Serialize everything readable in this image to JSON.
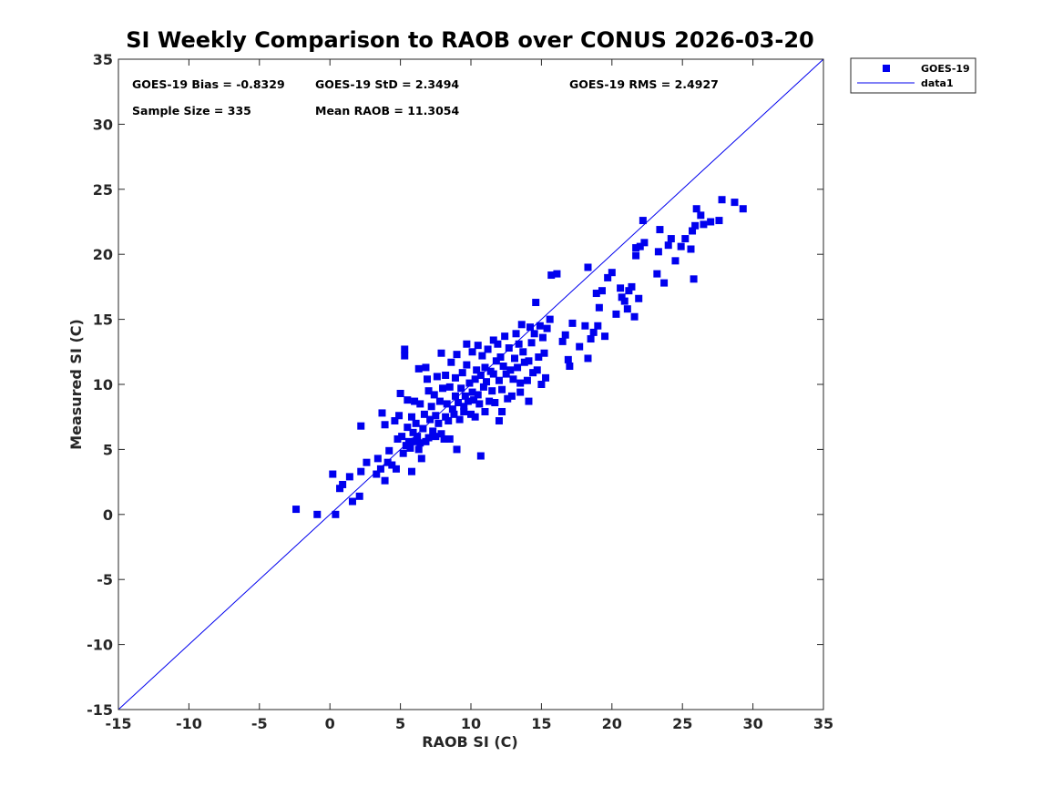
{
  "chart_data": {
    "type": "scatter",
    "title": "SI Weekly Comparison to RAOB over CONUS 2026-03-20",
    "xlabel": "RAOB SI (C)",
    "ylabel": "Measured SI (C)",
    "xlim": [
      -15,
      35
    ],
    "ylim": [
      -15,
      35
    ],
    "xticks": [
      -15,
      -10,
      -5,
      0,
      5,
      10,
      15,
      20,
      25,
      30,
      35
    ],
    "yticks": [
      -15,
      -10,
      -5,
      0,
      5,
      10,
      15,
      20,
      25,
      30,
      35
    ],
    "grid": false,
    "legend_position": "outside top-right",
    "stats": {
      "bias": "GOES-19 Bias = -0.8329",
      "std": "GOES-19 StD = 2.3494",
      "rms": "GOES-19 RMS = 2.4927",
      "sample_size": "Sample Size = 335",
      "mean_raob": "Mean RAOB = 11.3054"
    },
    "series": [
      {
        "name": "GOES-19",
        "kind": "scatter",
        "marker": "square",
        "color": "#0000ee",
        "points": [
          [
            -2.4,
            0.4
          ],
          [
            -0.9,
            0.0
          ],
          [
            0.4,
            0.0
          ],
          [
            0.2,
            3.1
          ],
          [
            0.7,
            2.0
          ],
          [
            0.9,
            2.3
          ],
          [
            1.4,
            2.9
          ],
          [
            1.6,
            1.0
          ],
          [
            2.1,
            1.4
          ],
          [
            2.2,
            3.3
          ],
          [
            2.2,
            6.8
          ],
          [
            2.6,
            4.0
          ],
          [
            3.3,
            3.1
          ],
          [
            3.4,
            4.3
          ],
          [
            3.6,
            3.5
          ],
          [
            3.7,
            7.8
          ],
          [
            3.9,
            2.6
          ],
          [
            3.9,
            6.9
          ],
          [
            4.1,
            4.0
          ],
          [
            4.2,
            4.9
          ],
          [
            4.4,
            3.8
          ],
          [
            4.6,
            7.2
          ],
          [
            4.7,
            3.5
          ],
          [
            4.8,
            5.8
          ],
          [
            4.9,
            7.6
          ],
          [
            5.0,
            9.3
          ],
          [
            5.1,
            6.0
          ],
          [
            5.2,
            4.7
          ],
          [
            5.3,
            12.2
          ],
          [
            5.3,
            12.7
          ],
          [
            5.4,
            5.3
          ],
          [
            5.5,
            8.8
          ],
          [
            5.5,
            6.7
          ],
          [
            5.6,
            5.6
          ],
          [
            5.7,
            5.1
          ],
          [
            5.8,
            3.3
          ],
          [
            5.8,
            7.5
          ],
          [
            5.9,
            6.3
          ],
          [
            6.0,
            5.6
          ],
          [
            6.0,
            8.7
          ],
          [
            6.1,
            7.0
          ],
          [
            6.2,
            6.0
          ],
          [
            6.3,
            11.2
          ],
          [
            6.3,
            5.0
          ],
          [
            6.4,
            5.5
          ],
          [
            6.4,
            8.5
          ],
          [
            6.5,
            4.3
          ],
          [
            6.6,
            6.6
          ],
          [
            6.7,
            7.7
          ],
          [
            6.8,
            5.6
          ],
          [
            6.8,
            11.3
          ],
          [
            6.9,
            10.4
          ],
          [
            7.0,
            5.9
          ],
          [
            7.0,
            9.5
          ],
          [
            7.1,
            7.3
          ],
          [
            7.2,
            8.3
          ],
          [
            7.3,
            6.4
          ],
          [
            7.4,
            9.2
          ],
          [
            7.5,
            7.6
          ],
          [
            7.5,
            6.0
          ],
          [
            7.6,
            10.6
          ],
          [
            7.7,
            7.0
          ],
          [
            7.8,
            8.7
          ],
          [
            7.9,
            12.4
          ],
          [
            7.9,
            6.2
          ],
          [
            8.0,
            9.7
          ],
          [
            8.1,
            5.8
          ],
          [
            8.2,
            7.5
          ],
          [
            8.2,
            10.7
          ],
          [
            8.3,
            8.5
          ],
          [
            8.4,
            7.2
          ],
          [
            8.5,
            9.8
          ],
          [
            8.5,
            5.8
          ],
          [
            8.6,
            11.7
          ],
          [
            8.7,
            8.1
          ],
          [
            8.8,
            7.7
          ],
          [
            8.9,
            9.1
          ],
          [
            8.9,
            10.5
          ],
          [
            9.0,
            5.0
          ],
          [
            9.0,
            12.3
          ],
          [
            9.1,
            8.6
          ],
          [
            9.2,
            7.3
          ],
          [
            9.3,
            9.7
          ],
          [
            9.4,
            10.9
          ],
          [
            9.5,
            8.3
          ],
          [
            9.5,
            7.9
          ],
          [
            9.6,
            9.1
          ],
          [
            9.7,
            11.5
          ],
          [
            9.7,
            13.1
          ],
          [
            9.8,
            8.7
          ],
          [
            9.9,
            10.1
          ],
          [
            10.0,
            7.7
          ],
          [
            10.1,
            9.4
          ],
          [
            10.1,
            12.5
          ],
          [
            10.2,
            8.8
          ],
          [
            10.3,
            10.4
          ],
          [
            10.3,
            7.5
          ],
          [
            10.4,
            11.1
          ],
          [
            10.5,
            9.2
          ],
          [
            10.5,
            13.0
          ],
          [
            10.6,
            8.5
          ],
          [
            10.7,
            4.5
          ],
          [
            10.7,
            10.7
          ],
          [
            10.8,
            12.2
          ],
          [
            10.9,
            9.8
          ],
          [
            11.0,
            7.9
          ],
          [
            11.0,
            11.3
          ],
          [
            11.1,
            10.2
          ],
          [
            11.2,
            12.7
          ],
          [
            11.3,
            8.7
          ],
          [
            11.4,
            11.0
          ],
          [
            11.5,
            9.5
          ],
          [
            11.6,
            13.4
          ],
          [
            11.6,
            10.8
          ],
          [
            11.7,
            8.6
          ],
          [
            11.8,
            11.8
          ],
          [
            11.9,
            13.1
          ],
          [
            12.0,
            10.3
          ],
          [
            12.0,
            7.2
          ],
          [
            12.1,
            12.1
          ],
          [
            12.2,
            7.9
          ],
          [
            12.2,
            9.6
          ],
          [
            12.3,
            11.4
          ],
          [
            12.4,
            13.7
          ],
          [
            12.5,
            10.8
          ],
          [
            12.6,
            8.9
          ],
          [
            12.7,
            12.8
          ],
          [
            12.8,
            11.1
          ],
          [
            12.9,
            9.1
          ],
          [
            13.0,
            10.4
          ],
          [
            13.1,
            12.0
          ],
          [
            13.2,
            13.9
          ],
          [
            13.3,
            11.3
          ],
          [
            13.4,
            13.1
          ],
          [
            13.5,
            9.4
          ],
          [
            13.5,
            10.1
          ],
          [
            13.6,
            14.6
          ],
          [
            13.7,
            12.5
          ],
          [
            13.8,
            11.7
          ],
          [
            14.0,
            10.3
          ],
          [
            14.1,
            8.7
          ],
          [
            14.1,
            11.8
          ],
          [
            14.2,
            14.4
          ],
          [
            14.3,
            13.2
          ],
          [
            14.4,
            10.9
          ],
          [
            14.5,
            13.9
          ],
          [
            14.6,
            16.3
          ],
          [
            14.7,
            11.1
          ],
          [
            14.8,
            12.1
          ],
          [
            14.9,
            14.5
          ],
          [
            15.0,
            10.0
          ],
          [
            15.1,
            13.6
          ],
          [
            15.2,
            12.4
          ],
          [
            15.3,
            10.5
          ],
          [
            15.4,
            14.3
          ],
          [
            15.6,
            15.0
          ],
          [
            15.7,
            18.4
          ],
          [
            16.1,
            18.5
          ],
          [
            16.5,
            13.3
          ],
          [
            16.7,
            13.8
          ],
          [
            16.9,
            11.9
          ],
          [
            17.0,
            11.4
          ],
          [
            17.2,
            14.7
          ],
          [
            17.7,
            12.9
          ],
          [
            18.1,
            14.5
          ],
          [
            18.3,
            12.0
          ],
          [
            18.3,
            19.0
          ],
          [
            18.5,
            13.5
          ],
          [
            18.7,
            14.0
          ],
          [
            18.9,
            17.0
          ],
          [
            19.0,
            14.5
          ],
          [
            19.1,
            15.9
          ],
          [
            19.3,
            17.2
          ],
          [
            19.5,
            13.7
          ],
          [
            19.7,
            18.2
          ],
          [
            20.0,
            18.6
          ],
          [
            20.3,
            15.4
          ],
          [
            20.6,
            17.4
          ],
          [
            20.7,
            16.7
          ],
          [
            20.9,
            16.4
          ],
          [
            21.1,
            15.8
          ],
          [
            21.2,
            17.2
          ],
          [
            21.4,
            17.5
          ],
          [
            21.6,
            15.2
          ],
          [
            21.7,
            19.9
          ],
          [
            21.7,
            20.5
          ],
          [
            21.9,
            16.6
          ],
          [
            22.0,
            20.6
          ],
          [
            22.2,
            22.6
          ],
          [
            22.3,
            20.9
          ],
          [
            23.2,
            18.5
          ],
          [
            23.3,
            20.2
          ],
          [
            23.4,
            21.9
          ],
          [
            23.7,
            17.8
          ],
          [
            24.0,
            20.7
          ],
          [
            24.2,
            21.2
          ],
          [
            24.5,
            19.5
          ],
          [
            24.9,
            20.6
          ],
          [
            25.2,
            21.2
          ],
          [
            25.6,
            20.4
          ],
          [
            25.7,
            21.8
          ],
          [
            25.8,
            18.1
          ],
          [
            25.9,
            22.2
          ],
          [
            26.0,
            23.5
          ],
          [
            26.3,
            23.0
          ],
          [
            26.5,
            22.3
          ],
          [
            27.0,
            22.5
          ],
          [
            27.6,
            22.6
          ],
          [
            27.8,
            24.2
          ],
          [
            28.7,
            24.0
          ],
          [
            29.3,
            23.5
          ]
        ]
      },
      {
        "name": "data1",
        "kind": "line",
        "color": "#0000ee",
        "x": [
          -15,
          35
        ],
        "y": [
          -15,
          35
        ]
      }
    ]
  }
}
